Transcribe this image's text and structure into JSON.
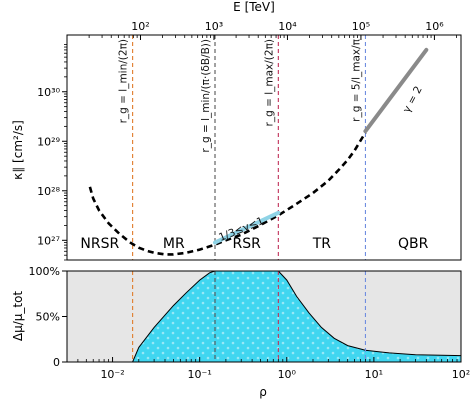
{
  "chart_data": [
    {
      "type": "line",
      "top_axis": {
        "label": "E [TeV]",
        "ticks": [
          "10²",
          "10³",
          "10⁴",
          "10⁵",
          "10⁶"
        ],
        "range": [
          10,
          2300000
        ],
        "scale": "log"
      },
      "ylabel": "κ∥ [cm²/s]",
      "yscale": "log",
      "ylim": [
        4e+26,
        1.4e+31
      ],
      "y_ticks": [
        "10²⁷",
        "10²⁸",
        "10²⁹",
        "10³⁰"
      ],
      "xlim": [
        0.003,
        100
      ],
      "xscale": "log",
      "series": [
        {
          "style": "dashed",
          "color": "#000000",
          "x": [
            0.0055,
            0.006,
            0.007,
            0.009,
            0.012,
            0.016,
            0.02,
            0.025,
            0.03,
            0.04,
            0.05,
            0.07,
            0.1,
            0.15,
            0.2,
            0.3,
            0.5,
            0.8,
            1.2,
            2,
            3,
            4,
            5,
            6,
            8
          ],
          "y": [
            1.2e+28,
            7e+27,
            4e+27,
            2.2e+27,
            1.35e+27,
            9e+26,
            7.1e+26,
            6.1e+26,
            5.6e+26,
            5.2e+26,
            5.2e+26,
            5.6e+26,
            6.5e+26,
            8.2e+26,
            1e+27,
            1.3e+27,
            2.05e+27,
            3.2e+27,
            5e+27,
            9e+27,
            1.6e+28,
            2.7e+28,
            4.2e+28,
            6.5e+28,
            1.5e+29
          ]
        },
        {
          "style": "solid",
          "color": "#8fd3e6",
          "x": [
            0.15,
            0.8
          ],
          "y": [
            9e+26,
            3.6e+27
          ]
        },
        {
          "style": "solid",
          "color": "#8a8a8a",
          "x": [
            8,
            40
          ],
          "y": [
            1.6e+29,
            7e+30
          ]
        }
      ],
      "vlines": [
        {
          "x": 0.017,
          "color": "#e07b2a",
          "label": "r_g = l_min/(2π)"
        },
        {
          "x": 0.15,
          "color": "#555555",
          "label": "r_g = l_min/(π·(δB/B))"
        },
        {
          "x": 0.8,
          "color": "#c0305a",
          "label": "r_g = l_max/(2π)"
        },
        {
          "x": 8,
          "color": "#6f8ee0",
          "label": "r_g = 5/l_max/π"
        }
      ],
      "annotations": [
        {
          "text": "γ = 2",
          "x": 30,
          "y": 6.5e+29,
          "rotation": -62
        },
        {
          "text": "1/3≤γ≤1",
          "x": 0.31,
          "y": 1.45e+27,
          "rotation": -22
        }
      ],
      "regions": [
        "NRSR",
        "MR",
        "RSR",
        "TR",
        "QBR"
      ]
    },
    {
      "type": "area",
      "xlabel": "ρ",
      "ylabel": "Δμ/μ_tot",
      "xscale": "log",
      "xlim": [
        0.003,
        100
      ],
      "x_ticks": [
        "10⁻²",
        "10⁻¹",
        "10⁰",
        "10¹",
        "10²"
      ],
      "ylim": [
        0,
        100
      ],
      "y_ticks": [
        "0",
        "50%",
        "100%"
      ],
      "fill_color": "#40d6f0",
      "background_color": "#e6e6e6",
      "series": [
        {
          "x": [
            0.017,
            0.02,
            0.03,
            0.05,
            0.07,
            0.1,
            0.13,
            0.15,
            0.2,
            0.3,
            0.5,
            0.8,
            1.0,
            1.3,
            1.8,
            2.5,
            3.5,
            5,
            8,
            15,
            30,
            100
          ],
          "y": [
            0,
            16,
            38,
            62,
            76,
            90,
            98,
            100,
            100,
            100,
            100,
            100,
            90,
            72,
            54,
            38,
            26,
            18,
            13,
            10,
            8,
            7
          ]
        }
      ]
    }
  ]
}
